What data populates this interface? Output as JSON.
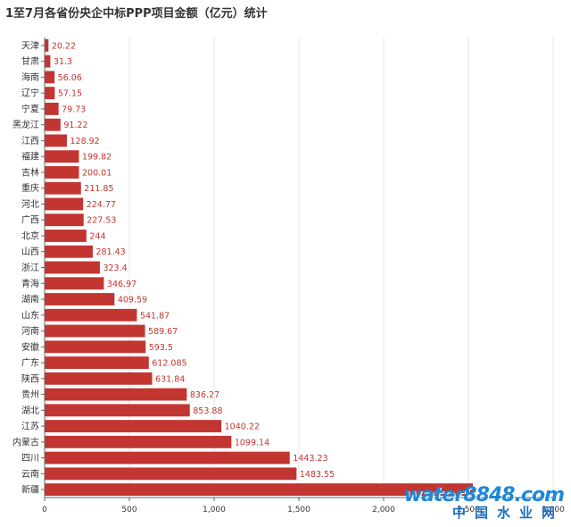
{
  "title": "1至7月各省份央企中标PPP项目金额（亿元）统计",
  "colors": {
    "bar": "#c23531",
    "grid": "#e6e6e6",
    "axis": "#666666"
  },
  "watermark": {
    "top": "water8848.com",
    "bottom": "中国水业网"
  },
  "chart_data": {
    "type": "bar",
    "orientation": "horizontal",
    "title": "1至7月各省份央企中标PPP项目金额（亿元）统计",
    "xlim": [
      0,
      3000
    ],
    "x_ticks": [
      "0",
      "500",
      "1,000",
      "1,500",
      "2,000",
      "2,500",
      "3,000"
    ],
    "grid": true,
    "categories": [
      "天津",
      "甘肃",
      "海南",
      "辽宁",
      "宁夏",
      "黑龙江",
      "江西",
      "福建",
      "吉林",
      "重庆",
      "河北",
      "广西",
      "北京",
      "山西",
      "浙江",
      "青海",
      "湖南",
      "山东",
      "河南",
      "安徽",
      "广东",
      "陕西",
      "贵州",
      "湖北",
      "江苏",
      "内蒙古",
      "四川",
      "云南",
      "新疆"
    ],
    "values": [
      20.22,
      31.3,
      56.06,
      57.15,
      79.73,
      91.22,
      128.92,
      199.82,
      200.01,
      211.85,
      224.77,
      227.53,
      244,
      281.43,
      323.4,
      346.97,
      409.59,
      541.87,
      589.67,
      593.5,
      612.085,
      631.84,
      836.27,
      853.88,
      1040.22,
      1099.14,
      1443.23,
      1483.55,
      2524
    ],
    "value_labels": [
      "20.22",
      "31.3",
      "56.06",
      "57.15",
      "79.73",
      "91.22",
      "128.92",
      "199.82",
      "200.01",
      "211.85",
      "224.77",
      "227.53",
      "244",
      "281.43",
      "323.4",
      "346.97",
      "409.59",
      "541.87",
      "589.67",
      "593.5",
      "612.085",
      "631.84",
      "836.27",
      "853.88",
      "1040.22",
      "1099.14",
      "1443.23",
      "1483.55",
      ""
    ]
  }
}
